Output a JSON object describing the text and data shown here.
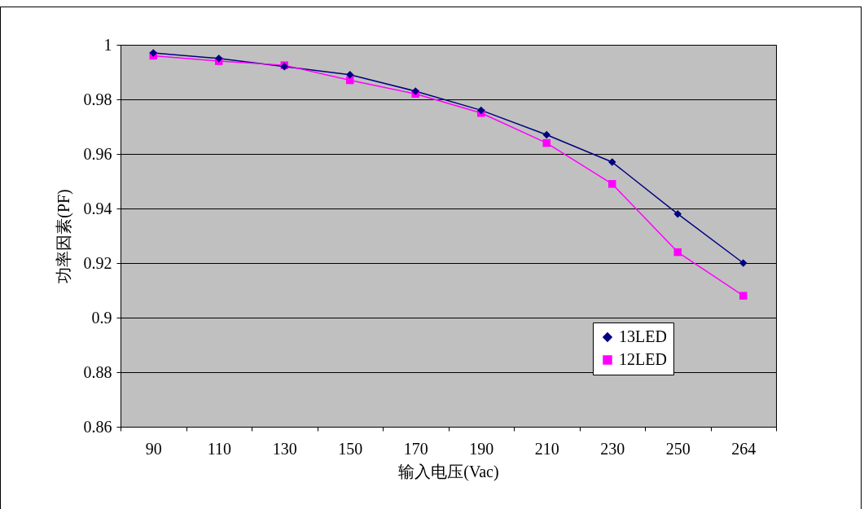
{
  "chart_data": {
    "type": "line",
    "xlabel": "输入电压(Vac)",
    "ylabel": "功率因素(PF)",
    "categories": [
      "90",
      "110",
      "130",
      "150",
      "170",
      "190",
      "210",
      "230",
      "250",
      "264"
    ],
    "series": [
      {
        "name": "13LED",
        "color": "#000080",
        "marker": "diamond",
        "values": [
          0.997,
          0.995,
          0.992,
          0.989,
          0.983,
          0.976,
          0.967,
          0.957,
          0.938,
          0.92
        ]
      },
      {
        "name": "12LED",
        "color": "#ff00ff",
        "marker": "square",
        "values": [
          0.996,
          0.994,
          0.9925,
          0.987,
          0.982,
          0.975,
          0.964,
          0.949,
          0.924,
          0.908
        ]
      }
    ],
    "ylim": [
      0.86,
      1
    ],
    "yticks": [
      0.86,
      0.88,
      0.9,
      0.92,
      0.94,
      0.96,
      0.98,
      1
    ],
    "grid": "y",
    "legend": "bottom right",
    "line_style": "solid"
  }
}
